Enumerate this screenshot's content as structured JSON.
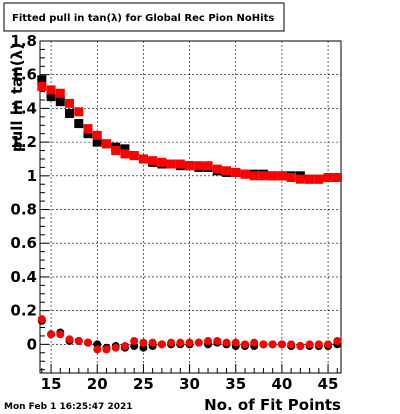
{
  "chart_data": {
    "type": "scatter",
    "title": "Fitted pull in tan(λ) for Global Rec Pion NoHits",
    "xlabel": "No. of Fit Points",
    "ylabel": "pull in tan(λ)",
    "xlim": [
      13.8,
      46.4
    ],
    "ylim": [
      -0.17,
      1.8
    ],
    "x_ticks": [
      15,
      20,
      25,
      30,
      35,
      40,
      45
    ],
    "y_ticks": [
      0,
      0.2,
      0.4,
      0.6,
      0.8,
      1,
      1.2,
      1.4,
      1.6,
      1.8
    ],
    "y_tick_labels": [
      "0",
      "0.2",
      "0.4",
      "0.6",
      "0.8",
      "1",
      "1.2",
      "1.4",
      "1.6",
      "1.8"
    ],
    "grid": true,
    "datestamp": "Mon Feb  1 16:25:47 2021",
    "series": [
      {
        "marker": "square",
        "color": "#000000",
        "x": [
          14,
          15,
          16,
          17,
          18,
          19,
          20,
          21,
          22,
          23,
          24,
          25,
          26,
          27,
          28,
          29,
          30,
          31,
          32,
          33,
          34,
          35,
          36,
          37,
          38,
          39,
          40,
          41,
          42,
          43,
          44,
          45,
          46
        ],
        "values": [
          1.57,
          1.47,
          1.44,
          1.37,
          1.31,
          1.25,
          1.2,
          1.19,
          1.17,
          1.16,
          1.12,
          1.1,
          1.08,
          1.07,
          1.07,
          1.06,
          1.06,
          1.05,
          1.05,
          1.03,
          1.02,
          1.02,
          1.01,
          1.01,
          1.01,
          1.0,
          1.0,
          1.0,
          1.0,
          0.98,
          0.98,
          0.99,
          0.99
        ]
      },
      {
        "marker": "square",
        "color": "#ff0000",
        "x": [
          14,
          15,
          16,
          17,
          18,
          19,
          20,
          21,
          22,
          23,
          24,
          25,
          26,
          27,
          28,
          29,
          30,
          31,
          32,
          33,
          34,
          35,
          36,
          37,
          38,
          39,
          40,
          41,
          42,
          43,
          44,
          45,
          46
        ],
        "values": [
          1.53,
          1.51,
          1.49,
          1.43,
          1.38,
          1.28,
          1.24,
          1.19,
          1.15,
          1.13,
          1.12,
          1.1,
          1.09,
          1.08,
          1.07,
          1.07,
          1.06,
          1.06,
          1.06,
          1.04,
          1.03,
          1.02,
          1.01,
          1.0,
          1.0,
          1.0,
          1.0,
          0.99,
          0.98,
          0.98,
          0.98,
          0.99,
          0.99
        ]
      },
      {
        "marker": "circle",
        "color": "#000000",
        "x": [
          14,
          15,
          16,
          17,
          18,
          19,
          20,
          21,
          22,
          23,
          24,
          25,
          26,
          27,
          28,
          29,
          30,
          31,
          32,
          33,
          34,
          35,
          36,
          37,
          38,
          39,
          40,
          41,
          42,
          43,
          44,
          45,
          46
        ],
        "values": [
          0.14,
          0.06,
          0.07,
          0.02,
          0.02,
          0.01,
          0.0,
          -0.02,
          -0.01,
          -0.02,
          -0.01,
          -0.02,
          -0.01,
          0.0,
          0.0,
          0.0,
          0.0,
          0.01,
          0.0,
          0.01,
          0.0,
          -0.01,
          -0.01,
          -0.01,
          0.0,
          0.0,
          0.0,
          -0.01,
          -0.01,
          -0.01,
          -0.01,
          -0.01,
          0.0
        ]
      },
      {
        "marker": "circle",
        "color": "#ff0000",
        "x": [
          14,
          15,
          16,
          17,
          18,
          19,
          20,
          21,
          22,
          23,
          24,
          25,
          26,
          27,
          28,
          29,
          30,
          31,
          32,
          33,
          34,
          35,
          36,
          37,
          38,
          39,
          40,
          41,
          42,
          43,
          44,
          45,
          46
        ],
        "values": [
          0.15,
          0.06,
          0.06,
          0.03,
          0.02,
          0.01,
          -0.03,
          -0.03,
          -0.02,
          -0.01,
          0.02,
          0.01,
          0.01,
          0.0,
          0.01,
          0.01,
          0.01,
          0.01,
          0.02,
          0.02,
          0.01,
          0.01,
          0.0,
          0.01,
          0.0,
          0.0,
          0.0,
          0.0,
          -0.01,
          0.0,
          0.0,
          0.0,
          0.02
        ]
      }
    ]
  }
}
